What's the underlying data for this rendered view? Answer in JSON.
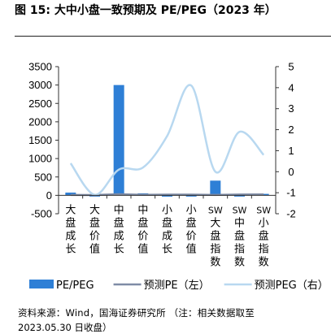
{
  "figure": {
    "title": "图 15:  大中小盘一致预期及 PE/PEG（2023 年）",
    "source": "资料来源：Wind，国海证券研究所  （注：相关数据取至",
    "source_cont": "2023.05.30 日收盘）"
  },
  "chart_data": {
    "type": "bar+line",
    "categories": [
      "大盘成长",
      "大盘价值",
      "中盘成长",
      "中盘价值",
      "小盘成长",
      "小盘价值",
      "SW大盘指数",
      "SW中盘指数",
      "SW小盘指数"
    ],
    "left_axis": {
      "ylim": [
        -500,
        3500
      ],
      "ticks": [
        -500,
        0,
        500,
        1000,
        1500,
        2000,
        2500,
        3000,
        3500
      ]
    },
    "right_axis": {
      "ylim": [
        -2,
        5
      ],
      "ticks": [
        -2,
        -1,
        0,
        1,
        2,
        3,
        4,
        5
      ]
    },
    "series": [
      {
        "name": "PE/PEG",
        "type": "bar",
        "axis": "left",
        "color": "#2e7fd6",
        "values": [
          75,
          -25,
          3000,
          55,
          -35,
          -25,
          400,
          -25,
          40
        ]
      },
      {
        "name": "预测PE（左）",
        "type": "line",
        "axis": "left",
        "color": "#7f8ca6",
        "values": [
          12,
          9,
          30,
          14,
          20,
          18,
          12,
          22,
          25
        ]
      },
      {
        "name": "预测PEG（右）",
        "type": "line",
        "axis": "right",
        "color": "#b8d8f0",
        "smooth": true,
        "values": [
          0.4,
          -1.1,
          0.1,
          0.2,
          1.7,
          4.1,
          0.0,
          1.9,
          0.8
        ]
      }
    ],
    "legend": {
      "position": "bottom"
    }
  }
}
